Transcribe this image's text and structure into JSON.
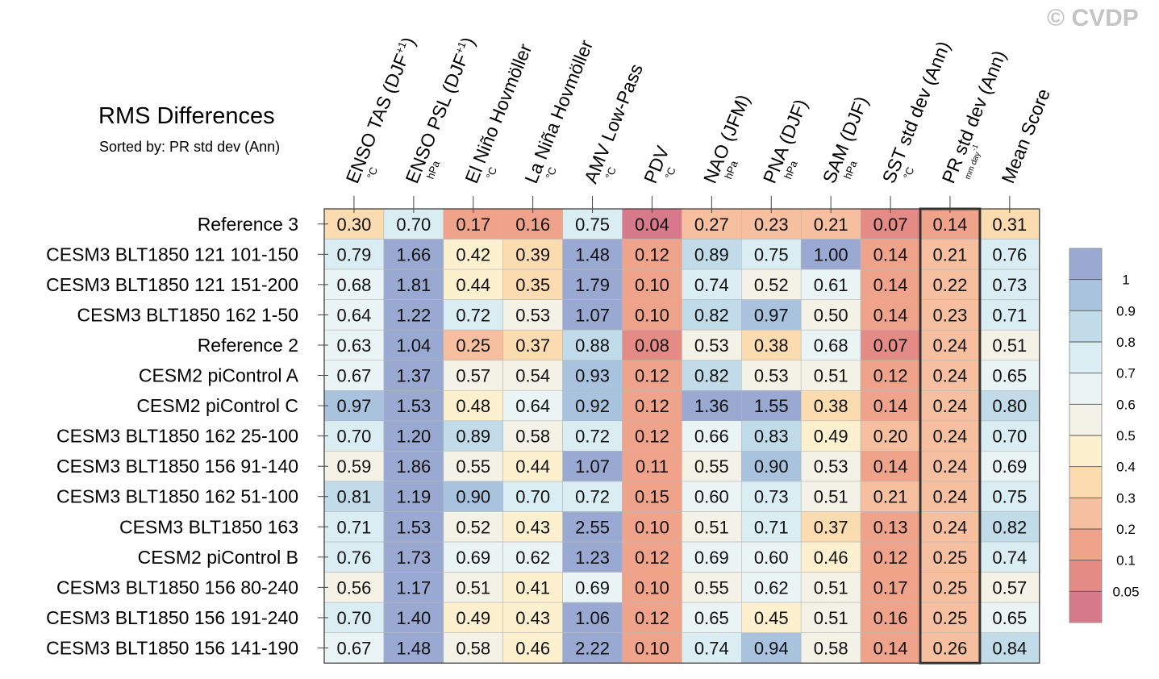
{
  "watermark": "© CVDP",
  "chart_data": {
    "type": "heatmap",
    "title": "RMS Differences",
    "subtitle": "Sorted by: PR std dev (Ann)",
    "columns": [
      {
        "label": "ENSO TAS (DJF",
        "sup": "+1",
        "close": ")",
        "unit": "°C"
      },
      {
        "label": "ENSO PSL (DJF",
        "sup": "+1",
        "close": ")",
        "unit": "hPa"
      },
      {
        "label": "El Niño Hovmöller",
        "unit": "°C"
      },
      {
        "label": "La Niña Hovmöller",
        "unit": "°C"
      },
      {
        "label": "AMV Low-Pass",
        "unit": "°C"
      },
      {
        "label": "PDV",
        "unit": "°C"
      },
      {
        "label": "NAO (JFM)",
        "unit": "hPa"
      },
      {
        "label": "PNA (DJF)",
        "unit": "hPa"
      },
      {
        "label": "SAM (DJF)",
        "unit": "hPa"
      },
      {
        "label": "SST std dev (Ann)",
        "unit": "°C"
      },
      {
        "label": "PR std dev (Ann)",
        "unit": "mm day",
        "unit_sup": "-1"
      },
      {
        "label": "Mean Score",
        "unit": ""
      }
    ],
    "highlighted_column": "PR std dev (Ann)",
    "rows": [
      "Reference 3",
      "CESM3 BLT1850 121 101-150",
      "CESM3 BLT1850 121 151-200",
      "CESM3 BLT1850 162 1-50",
      "Reference 2",
      "CESM2 piControl A",
      "CESM2 piControl C",
      "CESM3 BLT1850 162 25-100",
      "CESM3 BLT1850 156 91-140",
      "CESM3 BLT1850 162 51-100",
      "CESM3 BLT1850 163",
      "CESM2 piControl B",
      "CESM3 BLT1850 156 80-240",
      "CESM3 BLT1850 156 191-240",
      "CESM3 BLT1850 156 141-190"
    ],
    "values": [
      [
        "0.30",
        "0.70",
        "0.17",
        "0.16",
        "0.75",
        "0.04",
        "0.27",
        "0.23",
        "0.21",
        "0.07",
        "0.14",
        "0.31"
      ],
      [
        "0.79",
        "1.66",
        "0.42",
        "0.39",
        "1.48",
        "0.12",
        "0.89",
        "0.75",
        "1.00",
        "0.14",
        "0.21",
        "0.76"
      ],
      [
        "0.68",
        "1.81",
        "0.44",
        "0.35",
        "1.79",
        "0.10",
        "0.74",
        "0.52",
        "0.61",
        "0.14",
        "0.22",
        "0.73"
      ],
      [
        "0.64",
        "1.22",
        "0.72",
        "0.53",
        "1.07",
        "0.10",
        "0.82",
        "0.97",
        "0.50",
        "0.14",
        "0.23",
        "0.71"
      ],
      [
        "0.63",
        "1.04",
        "0.25",
        "0.37",
        "0.88",
        "0.08",
        "0.53",
        "0.38",
        "0.68",
        "0.07",
        "0.24",
        "0.51"
      ],
      [
        "0.67",
        "1.37",
        "0.57",
        "0.54",
        "0.93",
        "0.12",
        "0.82",
        "0.53",
        "0.51",
        "0.12",
        "0.24",
        "0.65"
      ],
      [
        "0.97",
        "1.53",
        "0.48",
        "0.64",
        "0.92",
        "0.12",
        "1.36",
        "1.55",
        "0.38",
        "0.14",
        "0.24",
        "0.80"
      ],
      [
        "0.70",
        "1.20",
        "0.89",
        "0.58",
        "0.72",
        "0.12",
        "0.66",
        "0.83",
        "0.49",
        "0.20",
        "0.24",
        "0.70"
      ],
      [
        "0.59",
        "1.86",
        "0.55",
        "0.44",
        "1.07",
        "0.11",
        "0.55",
        "0.90",
        "0.53",
        "0.14",
        "0.24",
        "0.69"
      ],
      [
        "0.81",
        "1.19",
        "0.90",
        "0.70",
        "0.72",
        "0.15",
        "0.60",
        "0.73",
        "0.51",
        "0.21",
        "0.24",
        "0.75"
      ],
      [
        "0.71",
        "1.53",
        "0.52",
        "0.43",
        "2.55",
        "0.10",
        "0.51",
        "0.71",
        "0.37",
        "0.13",
        "0.24",
        "0.82"
      ],
      [
        "0.76",
        "1.73",
        "0.69",
        "0.62",
        "1.23",
        "0.12",
        "0.69",
        "0.60",
        "0.46",
        "0.12",
        "0.25",
        "0.74"
      ],
      [
        "0.56",
        "1.17",
        "0.51",
        "0.41",
        "0.69",
        "0.10",
        "0.55",
        "0.62",
        "0.51",
        "0.17",
        "0.25",
        "0.57"
      ],
      [
        "0.70",
        "1.40",
        "0.49",
        "0.43",
        "1.06",
        "0.12",
        "0.65",
        "0.45",
        "0.51",
        "0.16",
        "0.25",
        "0.65"
      ],
      [
        "0.67",
        "1.48",
        "0.58",
        "0.46",
        "2.22",
        "0.10",
        "0.74",
        "0.94",
        "0.58",
        "0.14",
        "0.26",
        "0.84"
      ]
    ],
    "colorbar": {
      "boundaries": [
        "1",
        "0.9",
        "0.8",
        "0.7",
        "0.6",
        "0.5",
        "0.4",
        "0.3",
        "0.2",
        "0.1",
        "0.05"
      ],
      "colors": [
        "#9aa9d1",
        "#a9c3de",
        "#c1dbe9",
        "#d9edf3",
        "#ebf4f5",
        "#f4f2e6",
        "#fdf0cf",
        "#fbdcb0",
        "#f6c0a0",
        "#efa38b",
        "#e48b86",
        "#d67a8c"
      ]
    }
  }
}
